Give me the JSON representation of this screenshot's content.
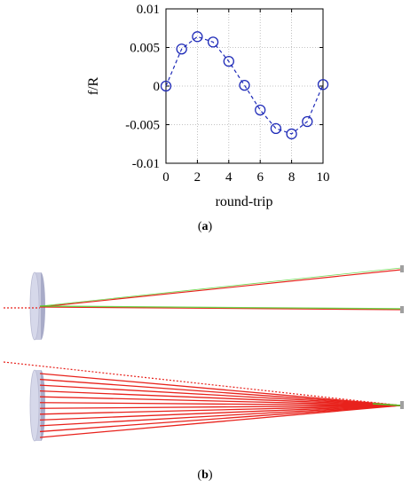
{
  "chart_data": {
    "type": "line",
    "title": "",
    "xlabel": "round-trip",
    "ylabel": "f/R",
    "xlim": [
      0,
      10
    ],
    "ylim": [
      -0.01,
      0.01
    ],
    "x_ticks": [
      0,
      2,
      4,
      6,
      8,
      10
    ],
    "x_tick_labels": [
      "0",
      "2",
      "4",
      "6",
      "8",
      "10"
    ],
    "y_ticks": [
      0.01,
      0.005,
      0,
      -0.005,
      -0.01
    ],
    "y_tick_labels": [
      "0.01",
      "0.005",
      "0",
      "-0.005",
      "-0.01"
    ],
    "grid": true,
    "legend": "none",
    "series": [
      {
        "marker": "open-circle",
        "line_style": "dashed",
        "color": "#1f2bb8",
        "x": [
          0,
          1,
          2,
          3,
          4,
          5,
          6,
          7,
          8,
          9,
          10
        ],
        "y": [
          0.0,
          0.0048,
          0.0064,
          0.0057,
          0.0032,
          0.0001,
          -0.0031,
          -0.0055,
          -0.0062,
          -0.0046,
          0.0002
        ]
      }
    ]
  },
  "captions": {
    "a_open": "(",
    "a_letter": "a",
    "a_close": ")",
    "b_open": "(",
    "b_letter": "b",
    "b_close": ")"
  },
  "illustration": {
    "mirror_color": "#c9cbe0",
    "ray_color": "#e8221c",
    "ray_highlight_color": "#4fd02a",
    "endpoint_color": "#a0a0a0",
    "fan_ray_count": 12
  }
}
